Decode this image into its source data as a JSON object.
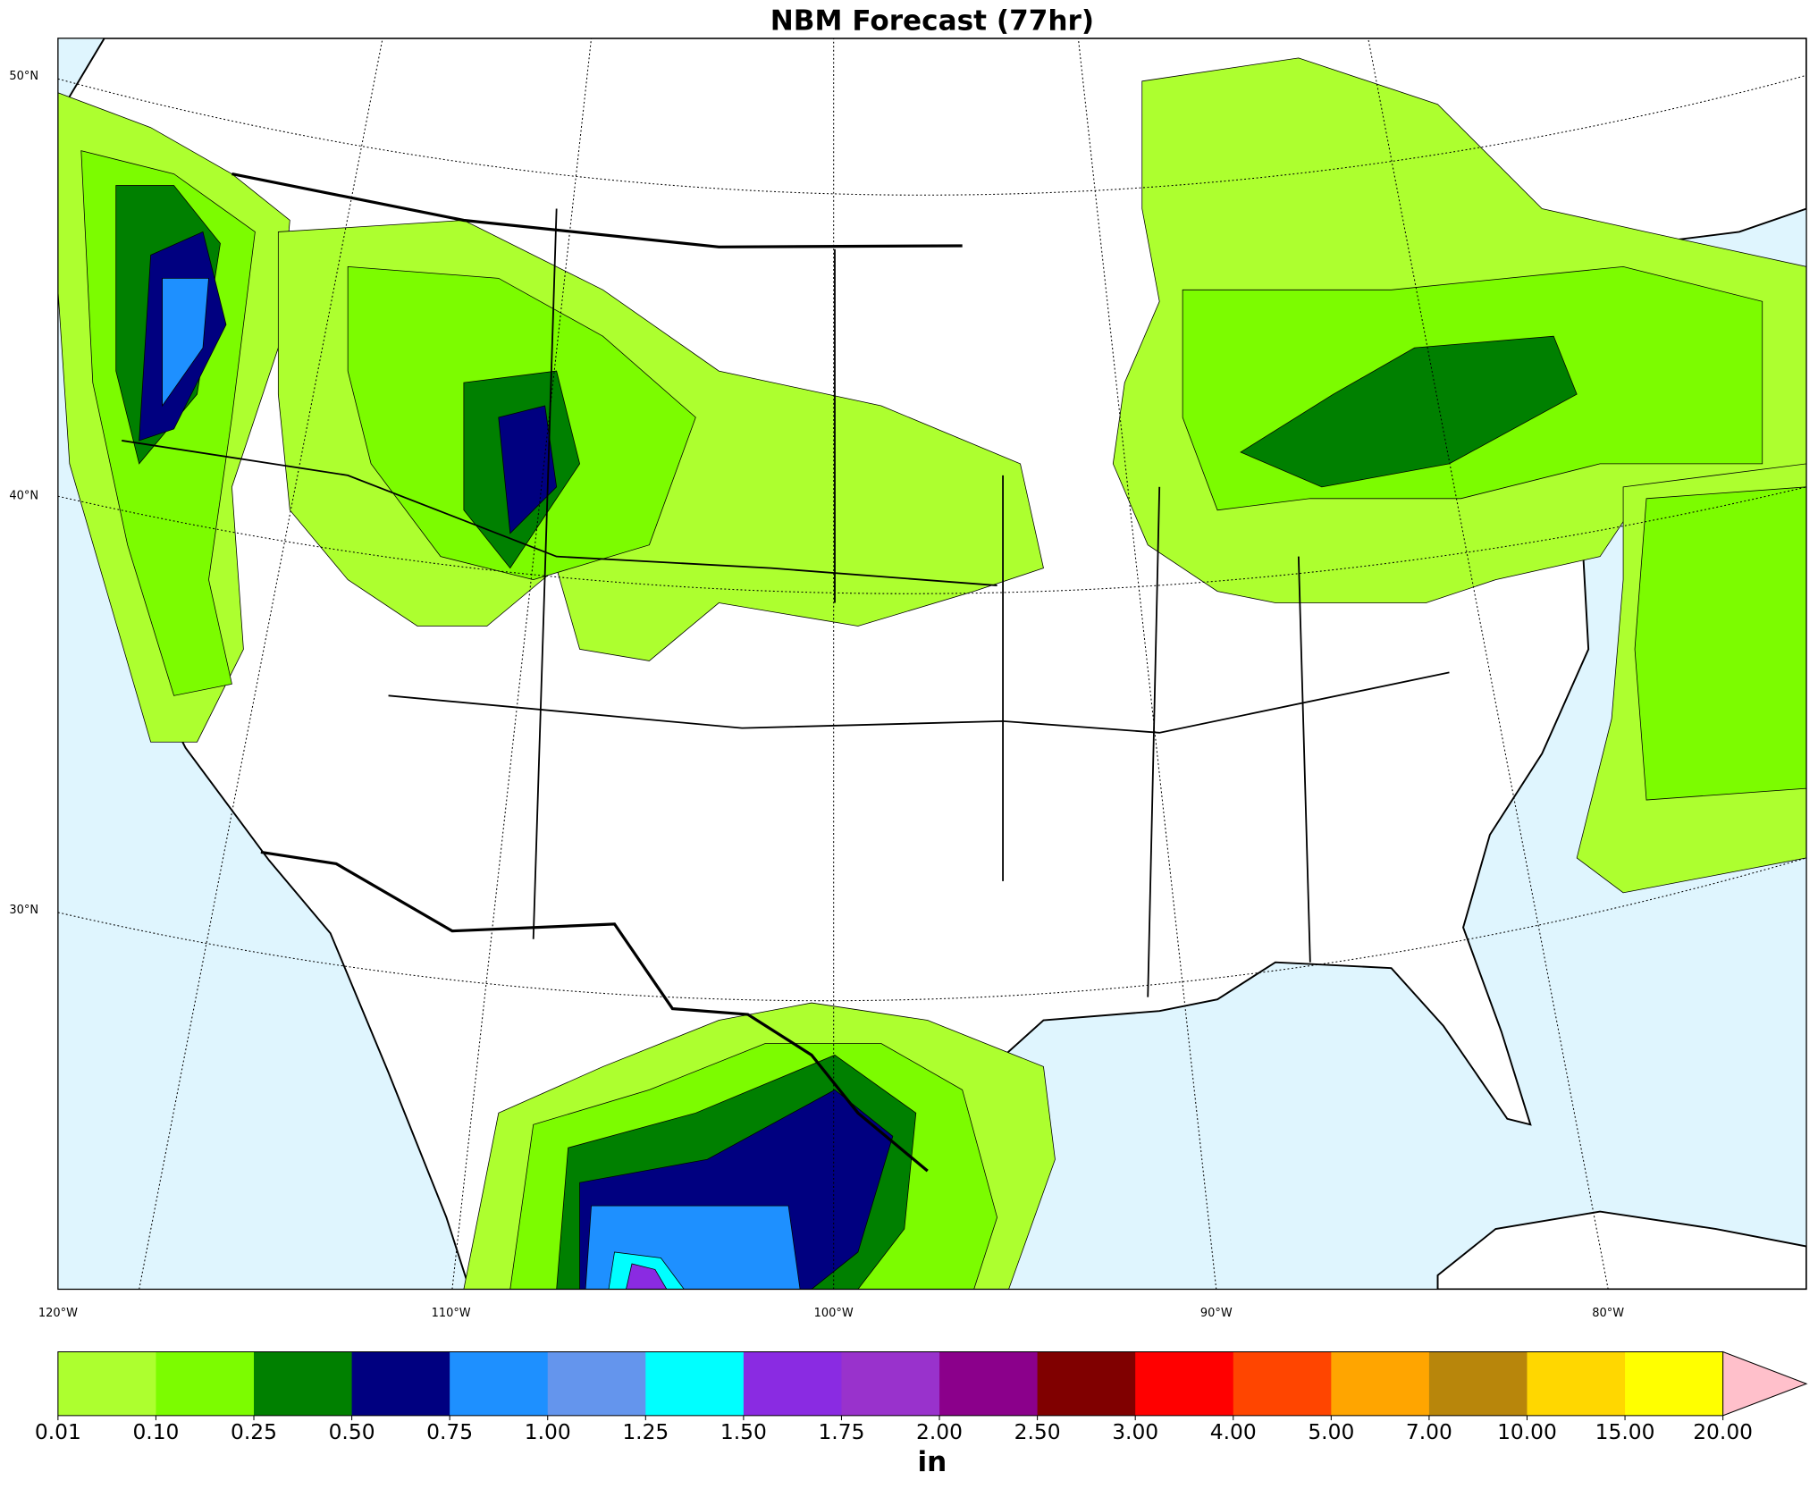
{
  "map": {
    "title": "NBM Forecast (77hr)",
    "lat_labels": [
      "50°N",
      "40°N",
      "30°N"
    ],
    "lon_labels": [
      "120°W",
      "110°W",
      "100°W",
      "90°W",
      "80°W"
    ],
    "colorbar": {
      "label": "in",
      "ticks": [
        {
          "value": 0.01,
          "label": "0.01"
        },
        {
          "value": 0.1,
          "label": "0.10"
        },
        {
          "value": 0.25,
          "label": "0.25"
        },
        {
          "value": 0.5,
          "label": "0.50"
        },
        {
          "value": 0.75,
          "label": "0.75"
        },
        {
          "value": 1,
          "label": "1.00"
        },
        {
          "value": 1.25,
          "label": "1.25"
        },
        {
          "value": 1.5,
          "label": "1.50"
        },
        {
          "value": 1.75,
          "label": "1.75"
        },
        {
          "value": 2,
          "label": "2.00"
        },
        {
          "value": 2.5,
          "label": "2.50"
        },
        {
          "value": 3,
          "label": "3.00"
        },
        {
          "value": 4,
          "label": "4.00"
        },
        {
          "value": 5,
          "label": "5.00"
        },
        {
          "value": 7,
          "label": "7.00"
        },
        {
          "value": 10,
          "label": "10.00"
        },
        {
          "value": 15,
          "label": "15.00"
        },
        {
          "value": 20,
          "label": "20.00"
        }
      ],
      "colors": [
        "#adff2f",
        "#7cfc00",
        "#008000",
        "#000080",
        "#1e90ff",
        "#6495ed",
        "#00ffff",
        "#8a2be2",
        "#9932cc",
        "#8b008b",
        "#800000",
        "#ff0000",
        "#ff4500",
        "#ffa500",
        "#b8860b",
        "#ffd700",
        "#ffff00"
      ],
      "extend_color": "#ffc0cb"
    }
  }
}
